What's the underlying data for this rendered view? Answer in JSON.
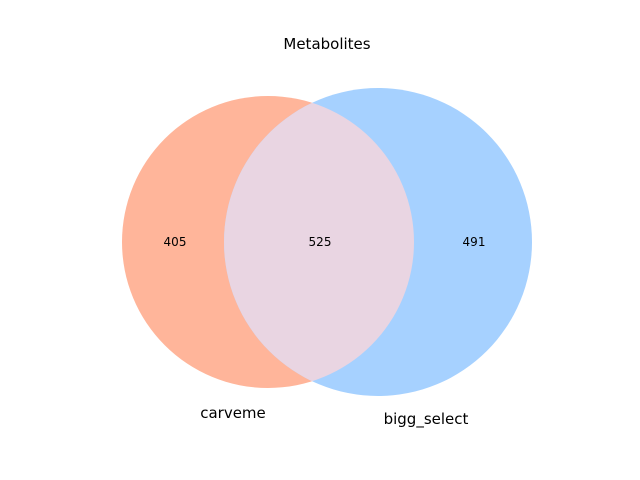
{
  "chart_data": {
    "type": "venn",
    "title": "Metabolites",
    "sets": [
      {
        "name": "carveme",
        "color": "#FFB59A"
      },
      {
        "name": "bigg_select",
        "color": "#A6D1FF"
      }
    ],
    "overlap_color": "#E9D5E2",
    "regions": {
      "carveme_only": 405,
      "intersection": 525,
      "bigg_select_only": 491
    }
  }
}
